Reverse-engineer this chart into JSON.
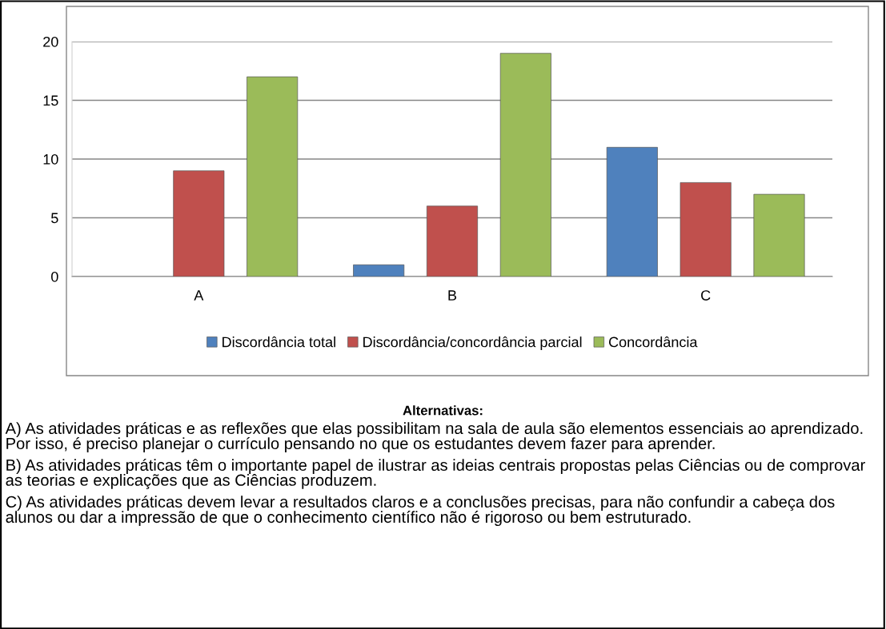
{
  "chart_data": {
    "type": "bar",
    "categories": [
      "A",
      "B",
      "C"
    ],
    "series": [
      {
        "name": "Discordância total",
        "color": "#4f81bd",
        "values": [
          null,
          1,
          11
        ]
      },
      {
        "name": "Discordância/concordância parcial",
        "color": "#c0504d",
        "values": [
          9,
          6,
          8
        ]
      },
      {
        "name": "Concordância",
        "color": "#9bbb59",
        "values": [
          17,
          19,
          7
        ]
      }
    ],
    "ylim": [
      0,
      20
    ],
    "yticks": [
      0,
      5,
      10,
      15,
      20
    ],
    "grid": "y",
    "legend": "bottom",
    "subtitle": "Alternativas:",
    "annotations": [
      "A) As atividades práticas e as reflexões que elas possibilitam na sala de aula são elementos essenciais ao aprendizado. Por isso, é preciso planejar o currículo pensando no que os estudantes devem fazer para aprender.",
      "B) As atividades práticas têm o importante papel de ilustrar as ideias centrais propostas pelas Ciências ou de comprovar as teorias e explicações que as Ciências produzem.",
      "C) As atividades práticas devem levar a resultados claros e a conclusões precisas, para não confundir a cabeça dos alunos ou dar a impressão de que o conhecimento científico não é rigoroso ou bem estruturado."
    ]
  }
}
